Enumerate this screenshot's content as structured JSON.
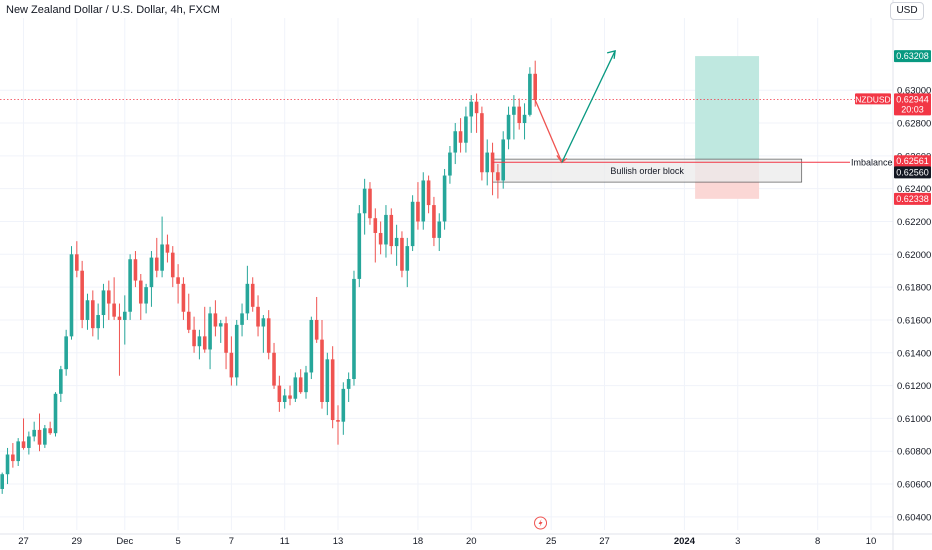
{
  "header": {
    "title": "New Zealand Dollar / U.S. Dollar, 4h, FXCM",
    "currency": "USD"
  },
  "colors": {
    "up": "#26a69a",
    "down": "#ef5350",
    "grid": "#f0f3fa",
    "axis_text": "#131722",
    "price_line": "#f23645",
    "target_line": "#089981",
    "target_fill": "#bfe8e0",
    "stop_fill": "#fbd7d5",
    "order_block_fill": "#ebebeb",
    "order_block_border": "#555555"
  },
  "chart_data": {
    "type": "candlestick",
    "symbol": "NZDUSD",
    "timeframe": "4h",
    "ylim": [
      0.6032,
      0.6344
    ],
    "y_ticks": [
      "0.63000",
      "0.62800",
      "0.62600",
      "0.62400",
      "0.62200",
      "0.62000",
      "0.61800",
      "0.61600",
      "0.61400",
      "0.61200",
      "0.61000",
      "0.60800",
      "0.60600",
      "0.60400"
    ],
    "x_ticks": [
      {
        "label": "27",
        "bar": 4
      },
      {
        "label": "29",
        "bar": 14
      },
      {
        "label": "Dec",
        "bar": 23
      },
      {
        "label": "5",
        "bar": 33
      },
      {
        "label": "7",
        "bar": 43
      },
      {
        "label": "11",
        "bar": 53
      },
      {
        "label": "13",
        "bar": 63
      },
      {
        "label": "18",
        "bar": 78
      },
      {
        "label": "20",
        "bar": 88
      },
      {
        "label": "25",
        "bar": 103
      },
      {
        "label": "27",
        "bar": 113
      },
      {
        "label": "2024",
        "bar": 128,
        "bold": true
      },
      {
        "label": "3",
        "bar": 138
      },
      {
        "label": "8",
        "bar": 153
      },
      {
        "label": "10",
        "bar": 163
      }
    ],
    "candles": [
      [
        0.6057,
        0.6067,
        0.6054,
        0.6066
      ],
      [
        0.6066,
        0.6082,
        0.606,
        0.6078
      ],
      [
        0.6078,
        0.6085,
        0.607,
        0.6074
      ],
      [
        0.6074,
        0.6088,
        0.6071,
        0.6086
      ],
      [
        0.6086,
        0.61,
        0.6081,
        0.6082
      ],
      [
        0.6082,
        0.6092,
        0.6078,
        0.6089
      ],
      [
        0.6089,
        0.6098,
        0.6086,
        0.6093
      ],
      [
        0.6093,
        0.6103,
        0.608,
        0.6084
      ],
      [
        0.6084,
        0.6096,
        0.6082,
        0.6094
      ],
      [
        0.6094,
        0.6098,
        0.609,
        0.6091
      ],
      [
        0.6091,
        0.6116,
        0.6089,
        0.6115
      ],
      [
        0.6115,
        0.6132,
        0.611,
        0.613
      ],
      [
        0.613,
        0.6154,
        0.6126,
        0.615
      ],
      [
        0.615,
        0.6205,
        0.6148,
        0.62
      ],
      [
        0.62,
        0.6208,
        0.6186,
        0.619
      ],
      [
        0.619,
        0.6196,
        0.6155,
        0.616
      ],
      [
        0.616,
        0.6176,
        0.6154,
        0.6172
      ],
      [
        0.6172,
        0.6178,
        0.615,
        0.6155
      ],
      [
        0.6155,
        0.617,
        0.6148,
        0.6163
      ],
      [
        0.6163,
        0.6182,
        0.6155,
        0.6178
      ],
      [
        0.6178,
        0.6184,
        0.616,
        0.617
      ],
      [
        0.617,
        0.6186,
        0.616,
        0.6162
      ],
      [
        0.6162,
        0.617,
        0.6126,
        0.616
      ],
      [
        0.616,
        0.6175,
        0.6145,
        0.6165
      ],
      [
        0.6165,
        0.62,
        0.616,
        0.6197
      ],
      [
        0.6197,
        0.6202,
        0.618,
        0.6184
      ],
      [
        0.6184,
        0.6188,
        0.616,
        0.617
      ],
      [
        0.617,
        0.6182,
        0.6164,
        0.618
      ],
      [
        0.618,
        0.6202,
        0.6168,
        0.6198
      ],
      [
        0.6198,
        0.621,
        0.6186,
        0.619
      ],
      [
        0.619,
        0.6223,
        0.6186,
        0.6206
      ],
      [
        0.6206,
        0.6212,
        0.6195,
        0.6201
      ],
      [
        0.6201,
        0.6205,
        0.618,
        0.6186
      ],
      [
        0.6186,
        0.6194,
        0.617,
        0.6182
      ],
      [
        0.6182,
        0.6186,
        0.616,
        0.6165
      ],
      [
        0.6165,
        0.6176,
        0.6152,
        0.6154
      ],
      [
        0.6154,
        0.6162,
        0.614,
        0.6144
      ],
      [
        0.6144,
        0.6154,
        0.6136,
        0.615
      ],
      [
        0.615,
        0.6168,
        0.614,
        0.6142
      ],
      [
        0.6142,
        0.6168,
        0.613,
        0.6164
      ],
      [
        0.6164,
        0.6172,
        0.615,
        0.6156
      ],
      [
        0.6156,
        0.616,
        0.6146,
        0.6158
      ],
      [
        0.6158,
        0.6162,
        0.613,
        0.614
      ],
      [
        0.614,
        0.615,
        0.612,
        0.6125
      ],
      [
        0.6125,
        0.616,
        0.612,
        0.6157
      ],
      [
        0.6157,
        0.617,
        0.615,
        0.6164
      ],
      [
        0.6164,
        0.6193,
        0.616,
        0.6182
      ],
      [
        0.6182,
        0.6186,
        0.6165,
        0.6168
      ],
      [
        0.6168,
        0.6175,
        0.615,
        0.6156
      ],
      [
        0.6156,
        0.6163,
        0.614,
        0.6161
      ],
      [
        0.6161,
        0.6166,
        0.6136,
        0.614
      ],
      [
        0.614,
        0.6146,
        0.6118,
        0.612
      ],
      [
        0.612,
        0.6126,
        0.6104,
        0.611
      ],
      [
        0.611,
        0.6118,
        0.6106,
        0.6114
      ],
      [
        0.6114,
        0.612,
        0.6108,
        0.6112
      ],
      [
        0.6112,
        0.6128,
        0.611,
        0.6125
      ],
      [
        0.6125,
        0.613,
        0.6115,
        0.6116
      ],
      [
        0.6116,
        0.6132,
        0.6112,
        0.6128
      ],
      [
        0.6128,
        0.6162,
        0.6124,
        0.616
      ],
      [
        0.616,
        0.6174,
        0.6146,
        0.6148
      ],
      [
        0.6148,
        0.616,
        0.6106,
        0.611
      ],
      [
        0.611,
        0.614,
        0.6102,
        0.6136
      ],
      [
        0.6136,
        0.6144,
        0.6094,
        0.6099
      ],
      [
        0.6099,
        0.6108,
        0.6084,
        0.6098
      ],
      [
        0.6098,
        0.6122,
        0.609,
        0.6118
      ],
      [
        0.6118,
        0.6128,
        0.611,
        0.6124
      ],
      [
        0.6124,
        0.619,
        0.612,
        0.6185
      ],
      [
        0.6185,
        0.623,
        0.618,
        0.6225
      ],
      [
        0.6225,
        0.6246,
        0.6212,
        0.624
      ],
      [
        0.624,
        0.6244,
        0.6218,
        0.6222
      ],
      [
        0.6222,
        0.6228,
        0.6195,
        0.6213
      ],
      [
        0.6213,
        0.622,
        0.62,
        0.6206
      ],
      [
        0.6206,
        0.623,
        0.6198,
        0.6224
      ],
      [
        0.6224,
        0.6228,
        0.62,
        0.6205
      ],
      [
        0.6205,
        0.6218,
        0.6193,
        0.621
      ],
      [
        0.621,
        0.6214,
        0.6186,
        0.619
      ],
      [
        0.619,
        0.621,
        0.618,
        0.6205
      ],
      [
        0.6205,
        0.6236,
        0.6202,
        0.6232
      ],
      [
        0.6232,
        0.6244,
        0.6215,
        0.622
      ],
      [
        0.622,
        0.625,
        0.6215,
        0.6245
      ],
      [
        0.6245,
        0.6248,
        0.6225,
        0.623
      ],
      [
        0.623,
        0.6235,
        0.6205,
        0.621
      ],
      [
        0.621,
        0.6225,
        0.6202,
        0.622
      ],
      [
        0.622,
        0.6252,
        0.6215,
        0.6248
      ],
      [
        0.6248,
        0.6266,
        0.6243,
        0.6262
      ],
      [
        0.6262,
        0.628,
        0.6255,
        0.6275
      ],
      [
        0.6275,
        0.6283,
        0.6262,
        0.6268
      ],
      [
        0.6268,
        0.629,
        0.6262,
        0.6284
      ],
      [
        0.6284,
        0.6297,
        0.6274,
        0.6293
      ],
      [
        0.6293,
        0.6298,
        0.6274,
        0.6286
      ],
      [
        0.6286,
        0.629,
        0.6245,
        0.625
      ],
      [
        0.625,
        0.627,
        0.6242,
        0.6262
      ],
      [
        0.6262,
        0.6268,
        0.6236,
        0.625
      ],
      [
        0.625,
        0.6255,
        0.6234,
        0.6245
      ],
      [
        0.6245,
        0.6275,
        0.624,
        0.627
      ],
      [
        0.627,
        0.629,
        0.6264,
        0.6285
      ],
      [
        0.6285,
        0.6297,
        0.627,
        0.629
      ],
      [
        0.629,
        0.6295,
        0.6276,
        0.628
      ],
      [
        0.628,
        0.6292,
        0.627,
        0.6285
      ],
      [
        0.6285,
        0.6314,
        0.6284,
        0.631
      ],
      [
        0.631,
        0.6318,
        0.629,
        0.6294
      ]
    ],
    "current_price": {
      "label": "NZDUSD",
      "value": "0.62944",
      "timer": "20:03",
      "price": 0.62944
    },
    "price_labels": [
      {
        "value": "0.63208",
        "price": 0.63208,
        "color": "#089981"
      },
      {
        "value": "0.62561",
        "price": 0.62561,
        "color": "#f23645"
      },
      {
        "value": "0.62560",
        "price": 0.6256,
        "color": "#131722"
      },
      {
        "value": "0.62338",
        "price": 0.62338,
        "color": "#f23645"
      }
    ],
    "imbalance": {
      "label": "Imbalance",
      "price": 0.62561
    },
    "order_block": {
      "label": "Bullish order block",
      "top": 0.6258,
      "bottom": 0.6244,
      "start_bar": 92,
      "end_bar": 150
    },
    "position": {
      "entry": 0.6256,
      "target": 0.63208,
      "stop": 0.62338,
      "start_bar": 130,
      "end_bar": 142
    },
    "projection": [
      {
        "bar": 100,
        "price": 0.6294
      },
      {
        "bar": 105,
        "price": 0.6256
      },
      {
        "bar": 115,
        "price": 0.6324
      }
    ],
    "grid": true
  }
}
